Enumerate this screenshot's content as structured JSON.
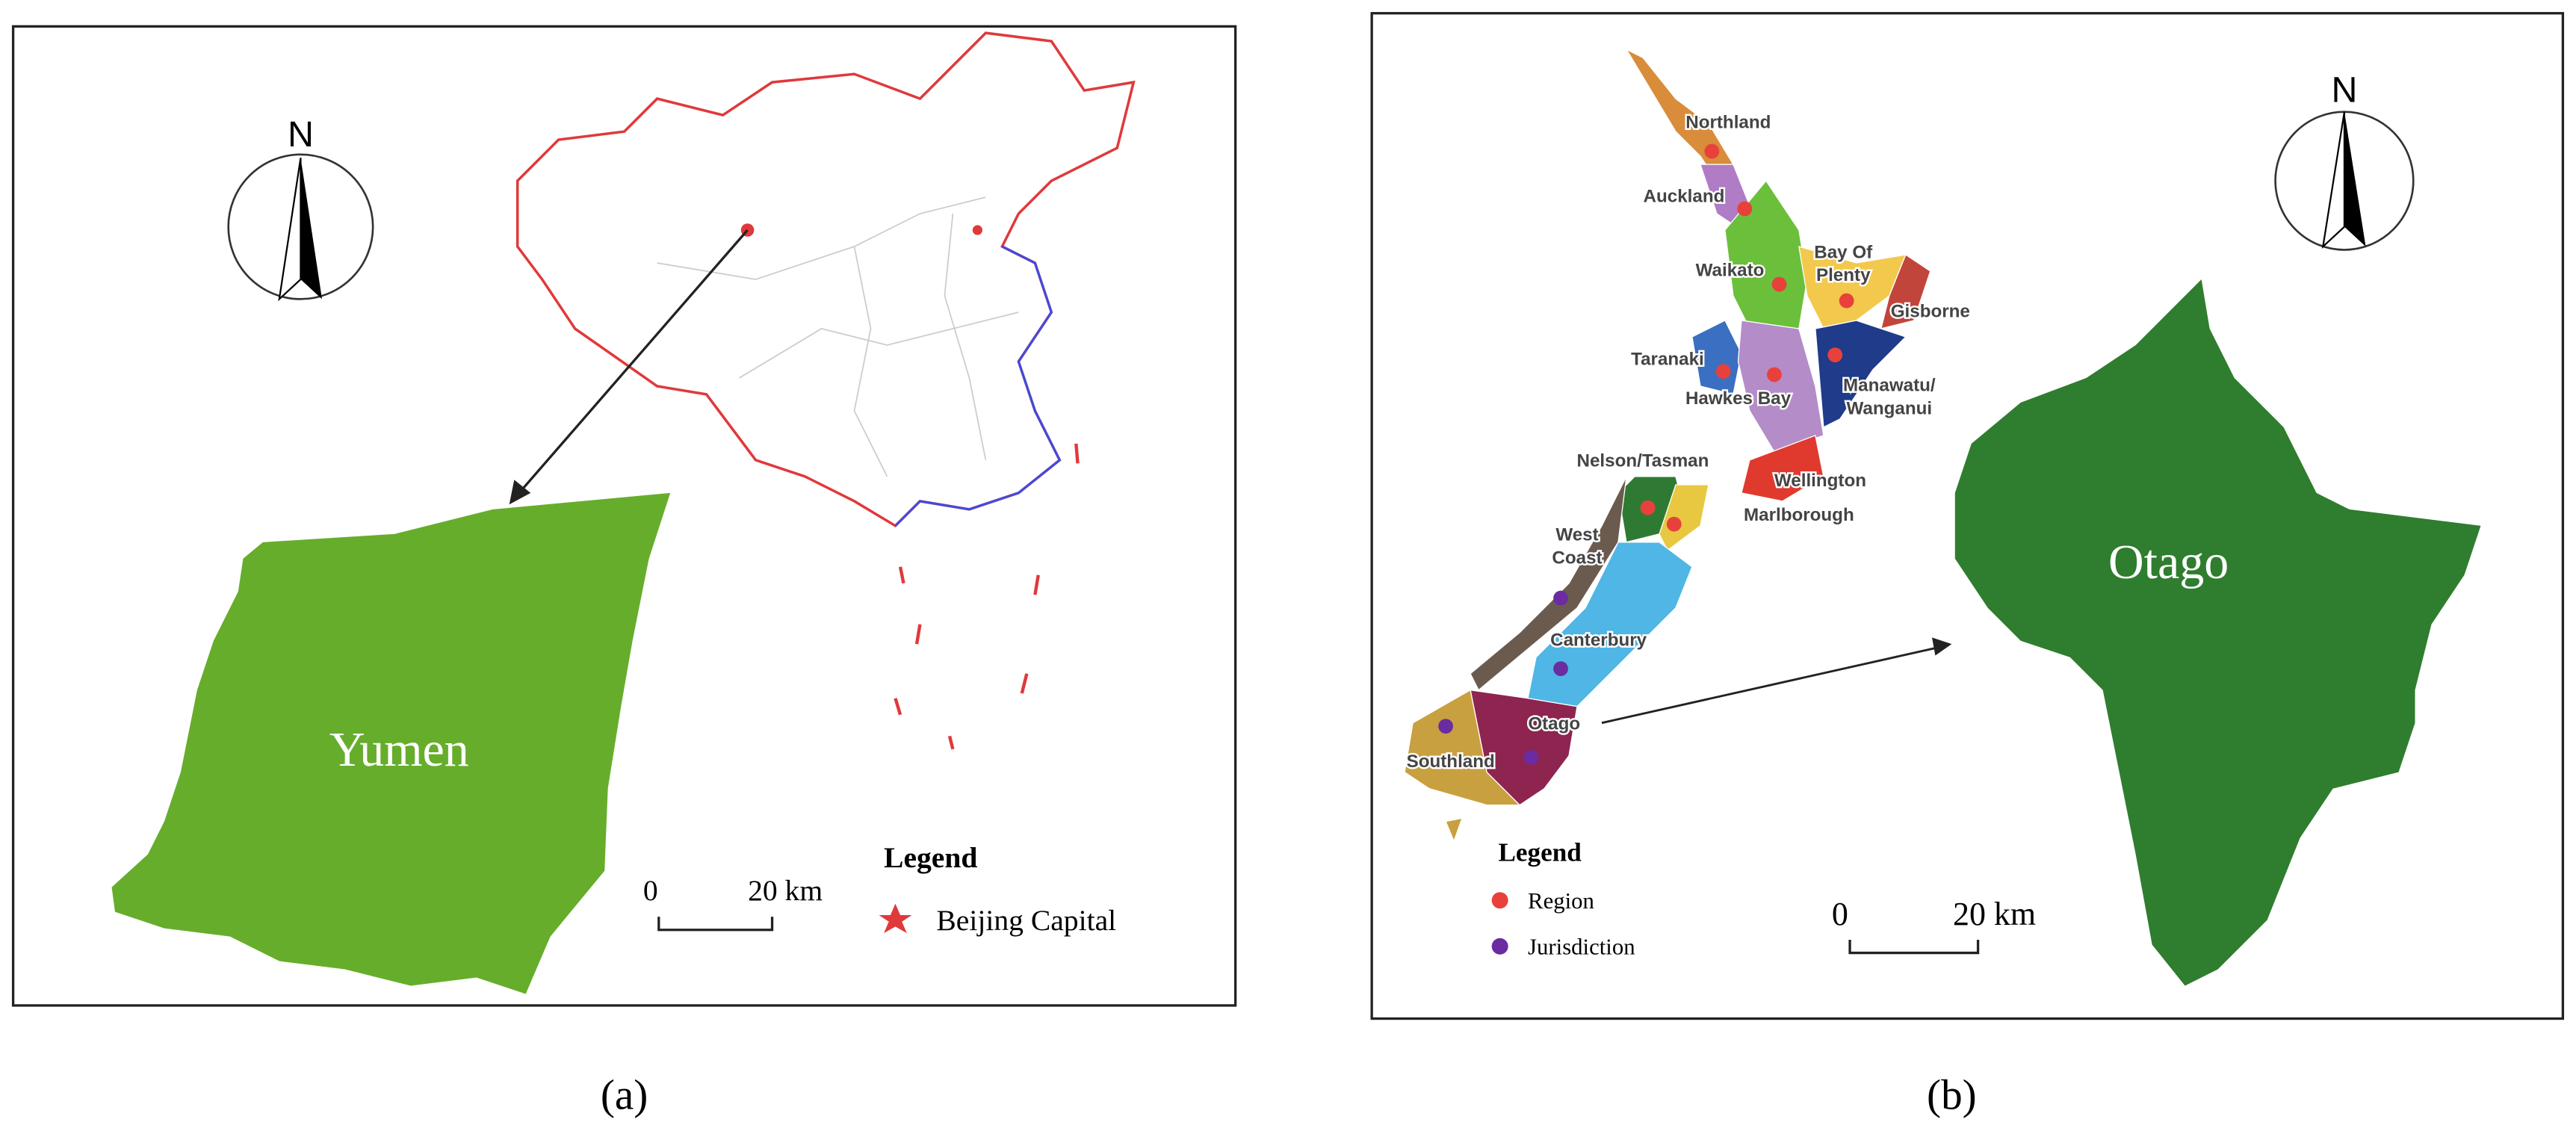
{
  "panels": [
    {
      "caption": "(a)",
      "label": "Yumen",
      "north": "N",
      "scale": {
        "start": "0",
        "end": "20 km"
      },
      "legend": {
        "title": "Legend",
        "items": [
          "Beijing Capital"
        ]
      }
    },
    {
      "caption": "(b)",
      "label": "Otago",
      "north": "N",
      "scale": {
        "start": "0",
        "end": "20 km"
      },
      "legend": {
        "title": "Legend",
        "items": [
          "Region",
          "Jurisdiction"
        ]
      },
      "regions": [
        [
          "Northland"
        ],
        [
          "Auckland"
        ],
        [
          "Waikato"
        ],
        [
          "Bay Of",
          "Plenty"
        ],
        [
          "Gisborne"
        ],
        [
          "Taranaki"
        ],
        [
          "Hawkes Bay"
        ],
        [
          "Manawatu/",
          "Wanganui"
        ],
        [
          "Wellington"
        ],
        [
          "Nelson/Tasman"
        ],
        [
          "Marlborough"
        ],
        [
          "West",
          "Coast"
        ],
        [
          "Canterbury"
        ],
        [
          "Otago"
        ],
        [
          "Southland"
        ]
      ]
    }
  ]
}
